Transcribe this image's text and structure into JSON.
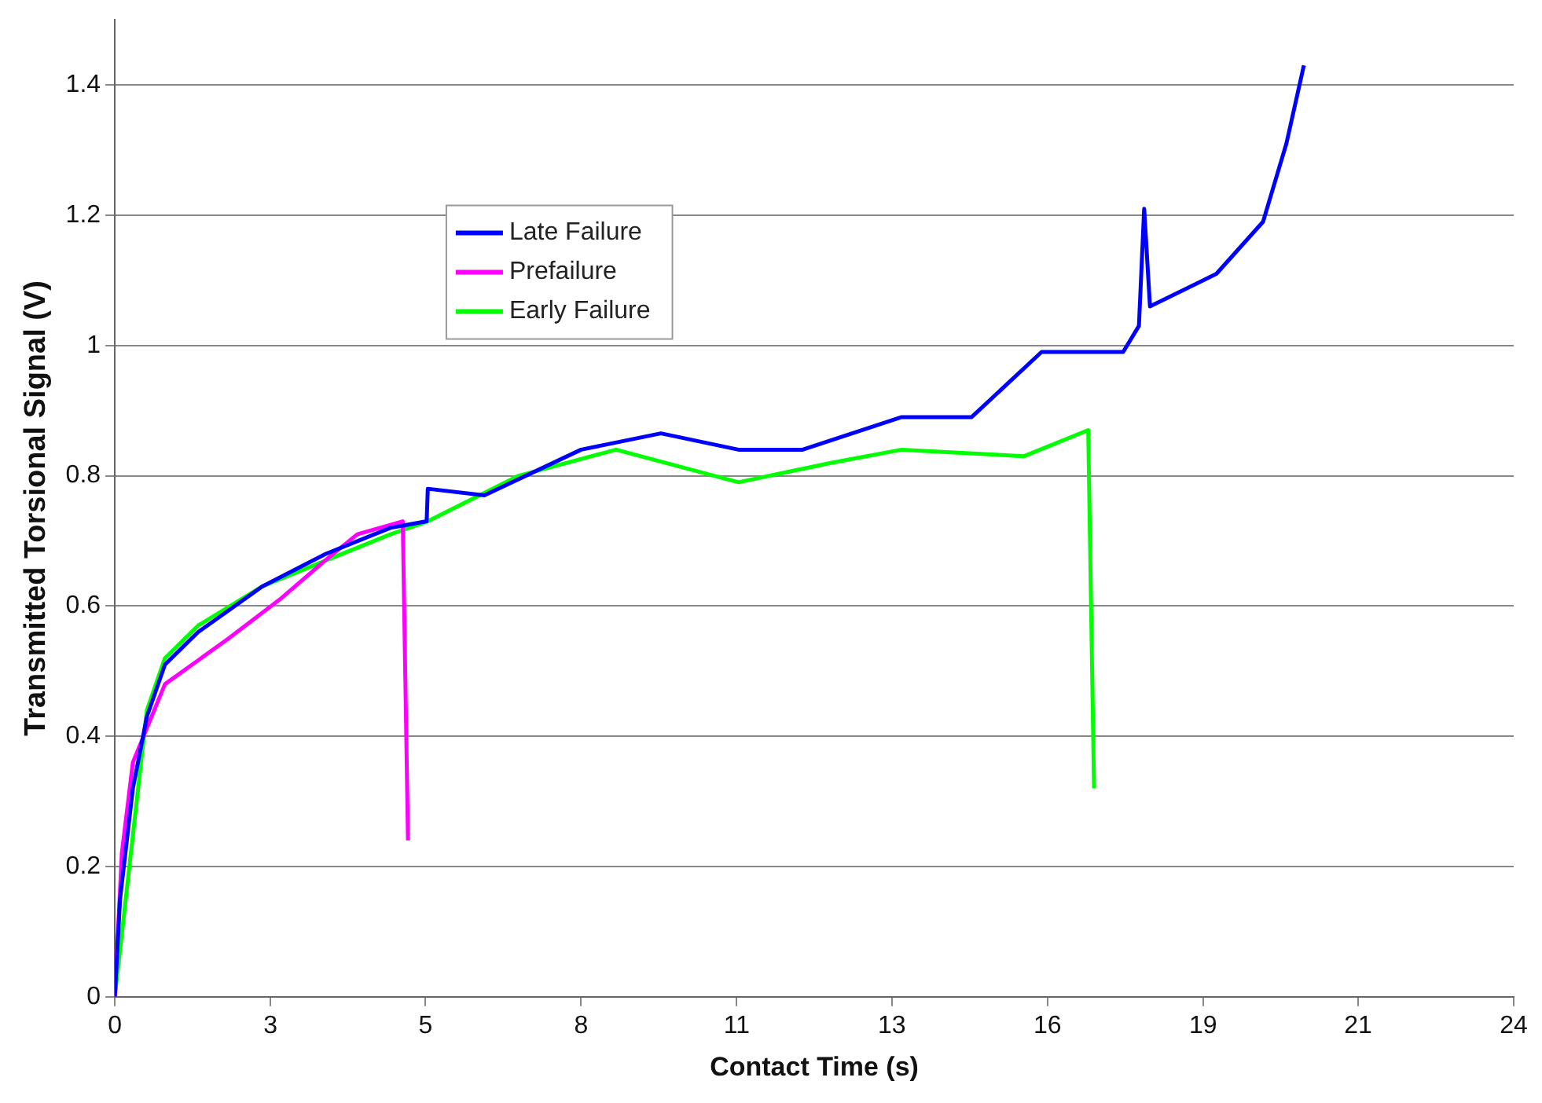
{
  "chart_data": {
    "type": "line",
    "xlabel": "Contact Time (s)",
    "ylabel": "Transmitted Torsional Signal (V)",
    "xlim": [
      0,
      24
    ],
    "xticks": [
      0,
      {
        "value": 2.67,
        "label": "3"
      },
      {
        "value": 5.33,
        "label": "5"
      },
      8,
      {
        "value": 10.67,
        "label": "11"
      },
      {
        "value": 13.33,
        "label": "13"
      },
      16,
      {
        "value": 18.67,
        "label": "19"
      },
      {
        "value": 21.33,
        "label": "21"
      },
      24
    ],
    "ylim": [
      0,
      1.5
    ],
    "yticks": [
      0,
      0.2,
      0.4,
      0.6,
      0.8,
      1,
      1.2,
      1.4
    ],
    "grid": "y",
    "legend": "top left",
    "marker": "none",
    "line_style": "solid",
    "series": [
      {
        "name": "Late Failure",
        "color": "#0000ff",
        "x": [
          0,
          0.09,
          0.31,
          0.55,
          0.86,
          1.43,
          2.53,
          3.62,
          4.73,
          5.35,
          5.37,
          6.34,
          8.0,
          9.37,
          10.7,
          11.8,
          13.5,
          14.7,
          15.9,
          17.3,
          17.57,
          17.66,
          17.76,
          18.9,
          19.7,
          20.1,
          20.4
        ],
        "values": [
          0,
          0.15,
          0.32,
          0.43,
          0.51,
          0.56,
          0.63,
          0.68,
          0.72,
          0.73,
          0.78,
          0.77,
          0.84,
          0.865,
          0.84,
          0.84,
          0.89,
          0.89,
          0.99,
          0.99,
          1.03,
          1.21,
          1.06,
          1.11,
          1.19,
          1.31,
          1.43
        ]
      },
      {
        "name": "Prefailure",
        "color": "#ff00ff",
        "x": [
          0,
          0.12,
          0.31,
          0.86,
          1.95,
          2.83,
          3.61,
          4.16,
          4.94,
          5.03
        ],
        "values": [
          0,
          0.22,
          0.36,
          0.48,
          0.55,
          0.61,
          0.67,
          0.71,
          0.73,
          0.24
        ]
      },
      {
        "name": "Early Failure",
        "color": "#00ff00",
        "x": [
          0,
          0.55,
          0.86,
          1.43,
          2.53,
          3.62,
          4.73,
          5.37,
          6.93,
          8.6,
          10.7,
          12.3,
          13.5,
          15.6,
          16.7,
          16.8
        ],
        "values": [
          0,
          0.44,
          0.52,
          0.57,
          0.63,
          0.67,
          0.71,
          0.73,
          0.8,
          0.84,
          0.79,
          0.82,
          0.84,
          0.83,
          0.87,
          0.32
        ]
      }
    ]
  }
}
